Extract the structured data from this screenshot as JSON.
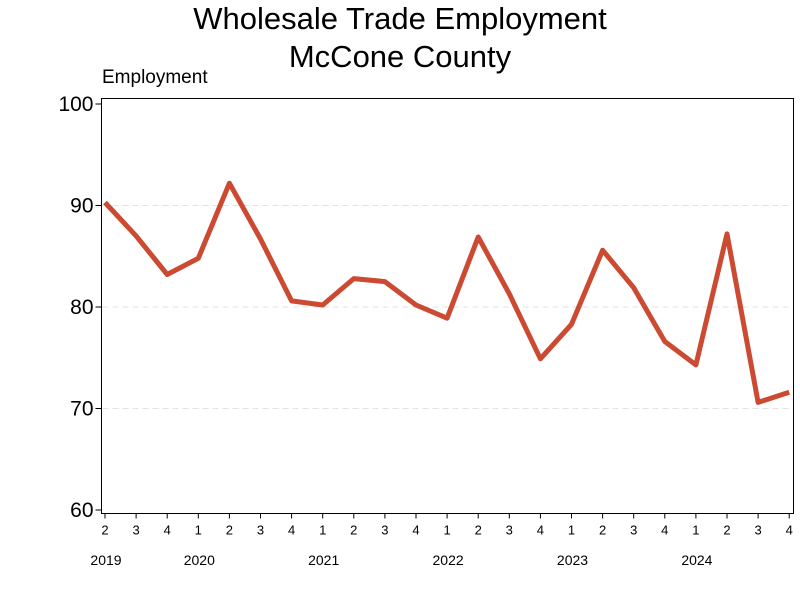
{
  "chart_data": {
    "type": "line",
    "title": "Wholesale Trade Employment",
    "subtitle": "McCone County",
    "ylabel": "Employment",
    "xlabel": "",
    "ylim": [
      60,
      100
    ],
    "yticks": [
      60,
      70,
      80,
      90,
      100
    ],
    "grid": "horizontal dashed at 70, 80, 90",
    "categories": [
      "2019 Q2",
      "2019 Q3",
      "2019 Q4",
      "2020 Q1",
      "2020 Q2",
      "2020 Q3",
      "2020 Q4",
      "2021 Q1",
      "2021 Q2",
      "2021 Q3",
      "2021 Q4",
      "2022 Q1",
      "2022 Q2",
      "2022 Q3",
      "2022 Q4",
      "2023 Q1",
      "2023 Q2",
      "2023 Q3",
      "2023 Q4",
      "2024 Q1",
      "2024 Q2",
      "2024 Q3",
      "2024 Q4"
    ],
    "quarter_labels": [
      "2",
      "3",
      "4",
      "1",
      "2",
      "3",
      "4",
      "1",
      "2",
      "3",
      "4",
      "1",
      "2",
      "3",
      "4",
      "1",
      "2",
      "3",
      "4",
      "1",
      "2",
      "3",
      "4"
    ],
    "year_labels": [
      {
        "label": "2019",
        "index": 0
      },
      {
        "label": "2020",
        "index": 3
      },
      {
        "label": "2021",
        "index": 7
      },
      {
        "label": "2022",
        "index": 11
      },
      {
        "label": "2023",
        "index": 15
      },
      {
        "label": "2024",
        "index": 19
      }
    ],
    "series": [
      {
        "color": "#cc4a32",
        "values": [
          90.3,
          87.0,
          83.2,
          84.8,
          92.2,
          86.7,
          80.6,
          80.2,
          82.8,
          82.5,
          80.2,
          78.9,
          86.9,
          81.3,
          74.9,
          78.3,
          85.6,
          81.9,
          76.6,
          74.3,
          87.2,
          70.6,
          71.6
        ]
      }
    ]
  }
}
